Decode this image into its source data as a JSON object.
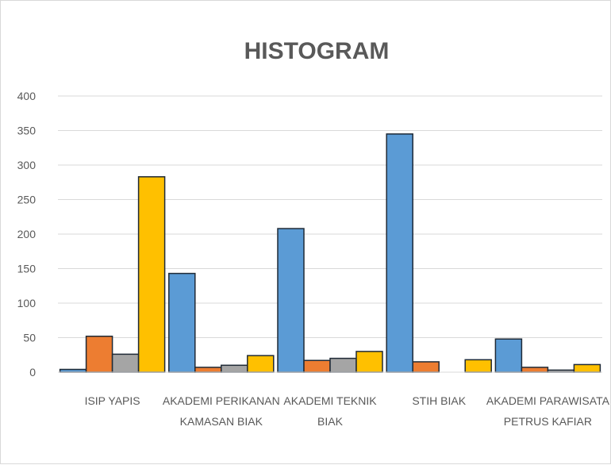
{
  "chart_data": {
    "type": "bar",
    "title": "HISTOGRAM",
    "xlabel": "",
    "ylabel": "",
    "ylim": [
      0,
      400
    ],
    "yticks": [
      0,
      50,
      100,
      150,
      200,
      250,
      300,
      350,
      400
    ],
    "grid": true,
    "legend": "none",
    "categories": [
      "ISIP YAPIS",
      "AKADEMI PERIKANAN KAMASAN BIAK",
      "AKADEMI TEKNIK BIAK",
      "STIH BIAK",
      "AKADEMI PARAWISATA PETRUS KAFIAR"
    ],
    "series": [
      {
        "color": "#5b9bd5",
        "values": [
          4,
          143,
          208,
          345,
          48
        ]
      },
      {
        "color": "#ed7d31",
        "values": [
          52,
          7,
          17,
          15,
          7
        ]
      },
      {
        "color": "#a5a5a5",
        "values": [
          26,
          10,
          20,
          0,
          3
        ]
      },
      {
        "color": "#ffc000",
        "values": [
          283,
          24,
          30,
          18,
          11
        ]
      }
    ]
  }
}
